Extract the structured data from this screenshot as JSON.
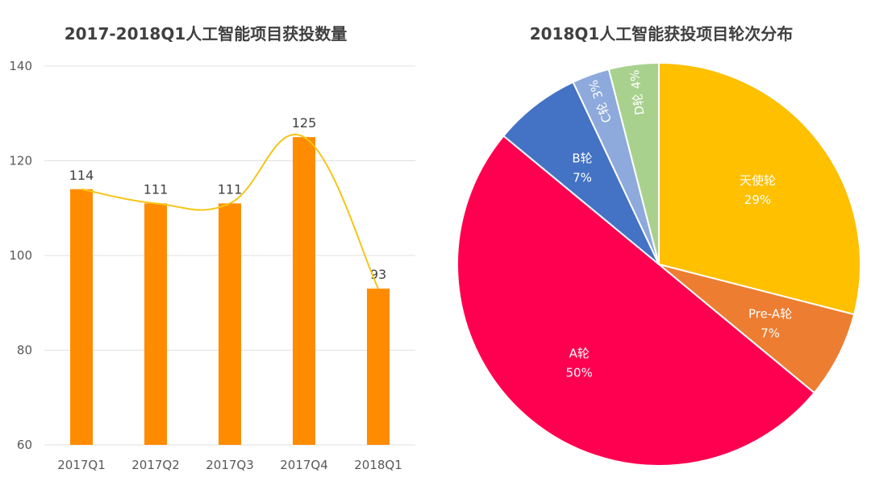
{
  "chart_data": [
    {
      "type": "bar",
      "title": "2017-2018Q1人工智能项目获投数量",
      "categories": [
        "2017Q1",
        "2017Q2",
        "2017Q3",
        "2017Q4",
        "2018Q1"
      ],
      "values": [
        114,
        111,
        111,
        125,
        93
      ],
      "yticks": [
        "60",
        "80",
        "100",
        "120",
        "140"
      ],
      "ylim": [
        60,
        140
      ],
      "grid": true,
      "overlay_line": true,
      "xlabel": "",
      "ylabel": "",
      "colors": {
        "bar": "#FF8C00",
        "line": "#F5C518",
        "grid": "#E0E0E0"
      }
    },
    {
      "type": "pie",
      "title": "2018Q1人工智能获投项目轮次分布",
      "slices": [
        {
          "label": "天使轮",
          "percent": "29%",
          "value": 29,
          "color": "#FFC000"
        },
        {
          "label": "Pre-A轮",
          "percent": "7%",
          "value": 7,
          "color": "#ED7D31"
        },
        {
          "label": "A轮",
          "percent": "50%",
          "value": 50,
          "color": "#FF0050"
        },
        {
          "label": "B轮",
          "percent": "7%",
          "value": 7,
          "color": "#4472C4"
        },
        {
          "label": "C轮",
          "percent": "3%",
          "value": 3,
          "color": "#8EA9DB"
        },
        {
          "label": "D轮",
          "percent": "4%",
          "value": 4,
          "color": "#A9D18E"
        }
      ]
    }
  ]
}
